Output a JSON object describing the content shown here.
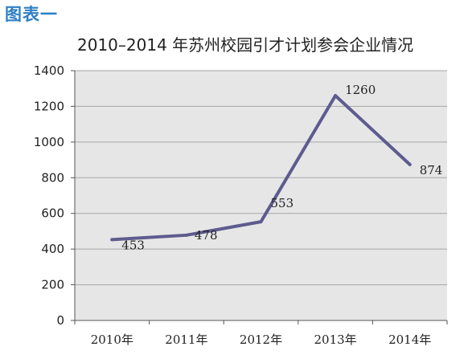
{
  "figure_label": "图表一",
  "chart_data": {
    "type": "line",
    "title": "2010–2014 年苏州校园引才计划参会企业情况",
    "xlabel": "",
    "ylabel": "",
    "categories": [
      "2010年",
      "2011年",
      "2012年",
      "2013年",
      "2014年"
    ],
    "series": [
      {
        "values": [
          453,
          478,
          553,
          1260,
          874
        ],
        "labels": [
          "453",
          "478",
          "553",
          "1260",
          "874"
        ]
      }
    ],
    "ylim": [
      0,
      1400
    ],
    "yticks": [
      0,
      200,
      400,
      600,
      800,
      1000,
      1200,
      1400
    ],
    "grid": true,
    "legend": "none",
    "colors": {
      "line": "#5e5b8f",
      "plot_background": "#e6e6e6",
      "grid": "#a6a6a6",
      "figure_label": "#2e7fc6"
    }
  }
}
